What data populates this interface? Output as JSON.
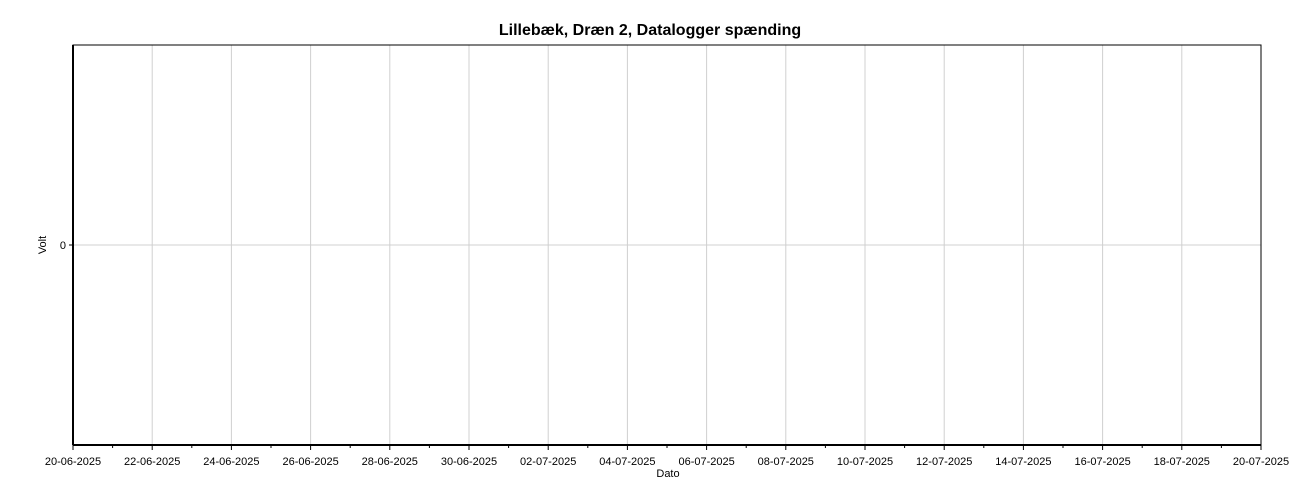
{
  "chart_data": {
    "type": "line",
    "title": "Lillebæk, Dræn 2, Datalogger spænding",
    "xlabel": "Dato",
    "ylabel": "Volt",
    "x_ticks": [
      "20-06-2025",
      "22-06-2025",
      "24-06-2025",
      "26-06-2025",
      "28-06-2025",
      "30-06-2025",
      "02-07-2025",
      "04-07-2025",
      "06-07-2025",
      "08-07-2025",
      "10-07-2025",
      "12-07-2025",
      "14-07-2025",
      "16-07-2025",
      "18-07-2025",
      "20-07-2025"
    ],
    "y_ticks": [
      "0"
    ],
    "xlim": [
      "20-06-2025",
      "20-07-2025"
    ],
    "grid": true,
    "series": []
  },
  "colors": {
    "grid": "#d0d0d0",
    "axis": "#000000",
    "frame": "#000000"
  }
}
